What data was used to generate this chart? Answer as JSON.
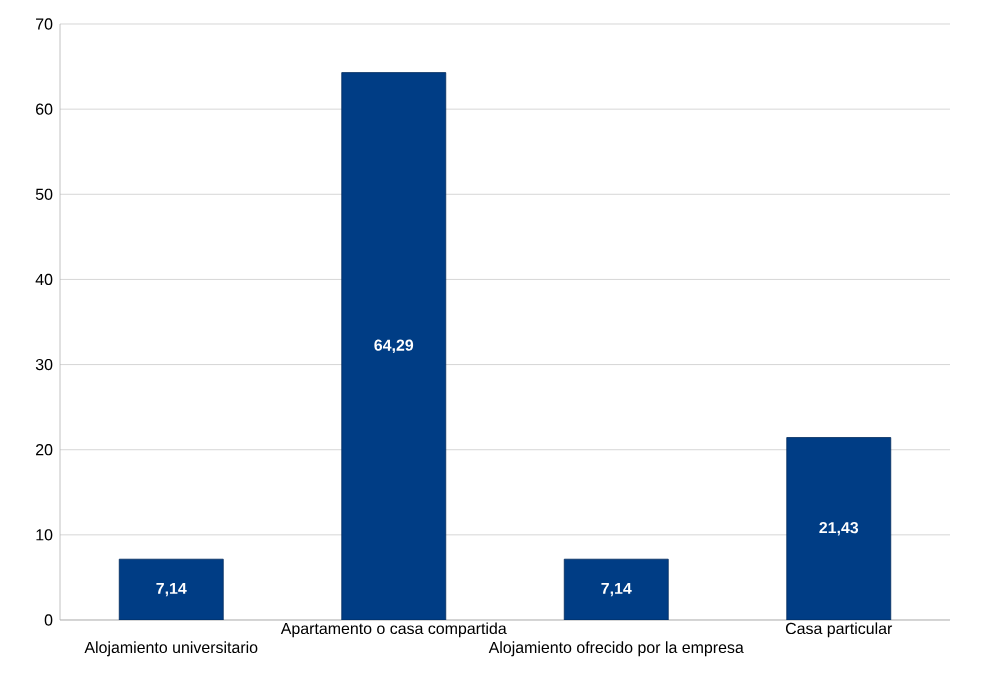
{
  "chart_data": {
    "type": "bar",
    "categories": [
      "Alojamiento universitario",
      "Apartamento o casa compartida",
      "Alojamiento ofrecido por la empresa",
      "Casa particular"
    ],
    "values": [
      7.14,
      64.29,
      7.14,
      21.43
    ],
    "value_labels": [
      "7,14",
      "64,29",
      "7,14",
      "21,43"
    ],
    "color": "#003d85",
    "ylim": [
      0,
      70
    ],
    "yticks": [
      0,
      10,
      20,
      30,
      40,
      50,
      60,
      70
    ],
    "grid": "y"
  }
}
